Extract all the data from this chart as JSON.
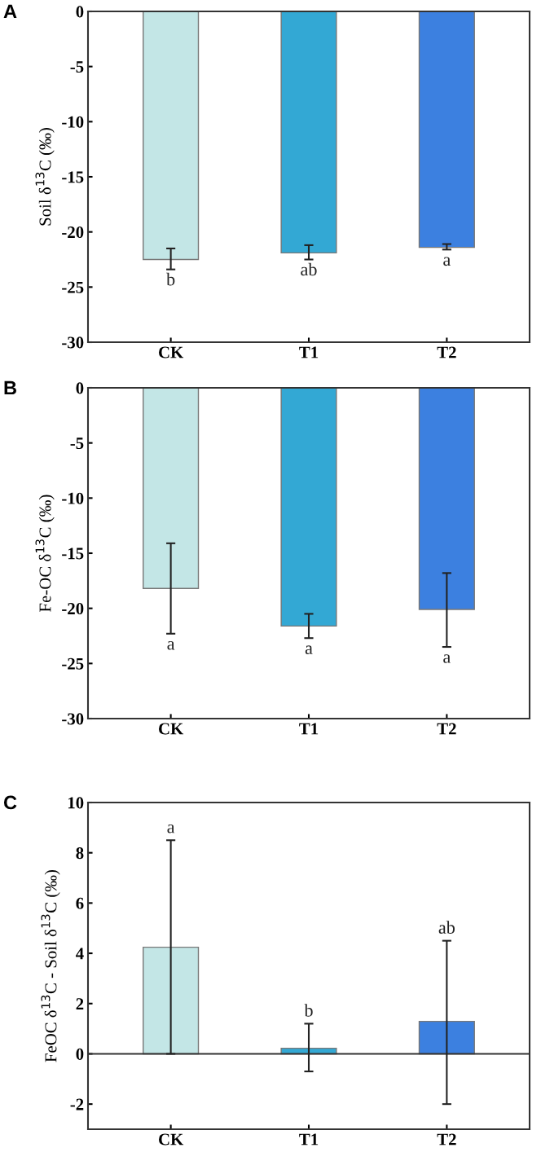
{
  "chart_data": [
    {
      "type": "bar",
      "title": "A",
      "ylabel": "Soil δ$^{13}$C (‰)",
      "categories": [
        "CK",
        "T1",
        "T2"
      ],
      "values": [
        -22.5,
        -21.9,
        -21.4
      ],
      "colors": [
        "#c3e6e6",
        "#33a8d4",
        "#3c80e0"
      ],
      "errors": [
        [
          -23.4,
          -21.5
        ],
        [
          -22.5,
          -21.2
        ],
        [
          -21.6,
          -21.1
        ]
      ],
      "ylim": [
        -30,
        0
      ],
      "yticks": [
        -30,
        -25,
        -20,
        -15,
        -10,
        -5,
        0
      ],
      "annotations": [
        "b",
        "ab",
        "a"
      ]
    },
    {
      "type": "bar",
      "title": "B",
      "ylabel": "Fe-OC δ$^{13}$C (‰)",
      "categories": [
        "CK",
        "T1",
        "T2"
      ],
      "values": [
        -18.2,
        -21.6,
        -20.1
      ],
      "colors": [
        "#c3e6e6",
        "#33a8d4",
        "#3c80e0"
      ],
      "errors": [
        [
          -22.3,
          -14.1
        ],
        [
          -22.7,
          -20.5
        ],
        [
          -23.5,
          -16.8
        ]
      ],
      "ylim": [
        -30,
        0
      ],
      "yticks": [
        -30,
        -25,
        -20,
        -15,
        -10,
        -5,
        0
      ],
      "annotations": [
        "a",
        "a",
        "a"
      ]
    },
    {
      "type": "bar",
      "title": "C",
      "ylabel": "FeOC δ$^{13}$C - Soil δ$^{13}$C (‰)",
      "categories": [
        "CK",
        "T1",
        "T2"
      ],
      "values": [
        4.24,
        0.22,
        1.29
      ],
      "colors": [
        "#c3e6e6",
        "#33a8d4",
        "#3c80e0"
      ],
      "errors": [
        [
          0.0,
          8.5
        ],
        [
          -0.7,
          1.2
        ],
        [
          -2.0,
          4.5
        ]
      ],
      "ylim": [
        -3,
        10
      ],
      "yticks": [
        -2,
        0,
        2,
        4,
        6,
        8,
        10
      ],
      "ref_lines": [
        {
          "axis": "y",
          "value": 0
        }
      ],
      "annotations": [
        "a",
        "b",
        "ab"
      ]
    }
  ]
}
